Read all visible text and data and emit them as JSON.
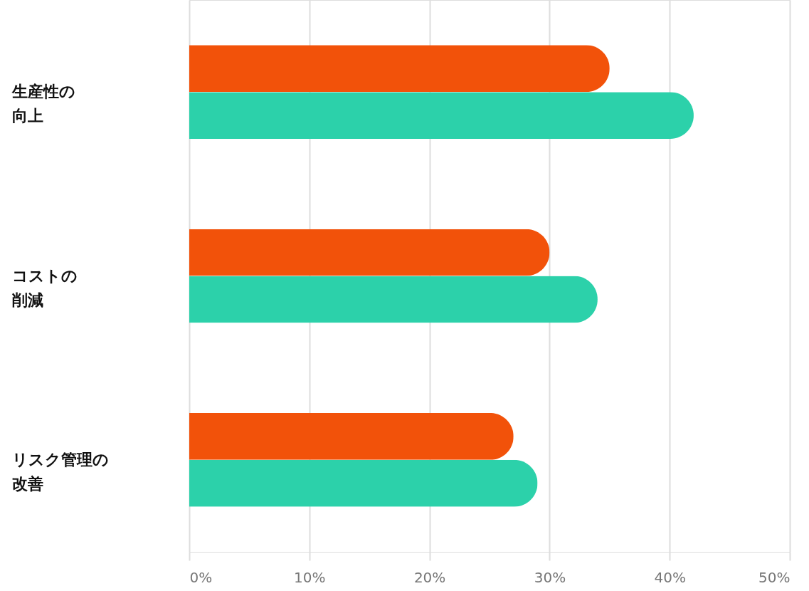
{
  "chart_data": {
    "type": "bar",
    "orientation": "horizontal",
    "categories": [
      "生産性の向上",
      "コストの削減",
      "リスク管理の改善"
    ],
    "series": [
      {
        "color": "#f2520a",
        "values": [
          35,
          30,
          27
        ]
      },
      {
        "color": "#2cd1aa",
        "values": [
          42,
          34,
          29
        ]
      }
    ],
    "xlim": [
      0,
      50
    ],
    "xticks": [
      {
        "value": 0,
        "label": "0%"
      },
      {
        "value": 10,
        "label": "10%"
      },
      {
        "value": 20,
        "label": "20%"
      },
      {
        "value": 30,
        "label": "30%"
      },
      {
        "value": 40,
        "label": "40%"
      },
      {
        "value": 50,
        "label": "50%"
      }
    ],
    "grid": "x",
    "legend": false
  }
}
